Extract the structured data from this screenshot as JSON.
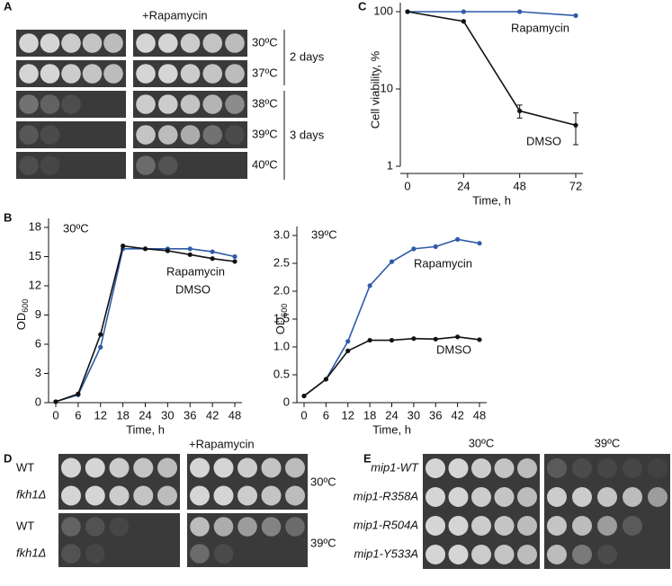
{
  "panel_labels": [
    "A",
    "B",
    "C",
    "D",
    "E"
  ],
  "spot_assays": [
    {
      "treatment": "+Rapamycin",
      "temperatures": [
        "30ºC",
        "37ºC",
        "38ºC",
        "39ºC",
        "40ºC"
      ],
      "groups": [
        "2 days",
        "3 days"
      ]
    },
    {
      "treatment": "+Rapamycin",
      "strains": [
        "WT",
        "fkh1Δ",
        "WT",
        "fkh1Δ"
      ],
      "temperatures": [
        "30ºC",
        "39ºC"
      ]
    },
    {
      "temperatures": [
        "30ºC",
        "39ºC"
      ],
      "strains": [
        "mip1-WT",
        "mip1-R358A",
        "mip1-R504A",
        "mip1-Y533A"
      ]
    }
  ],
  "chart_data": [
    {
      "type": "line",
      "log_y": true,
      "xlabel": "Time, h",
      "ylabel": "Cell viability, %",
      "x": [
        0,
        24,
        48,
        72
      ],
      "xlim": [
        0,
        72
      ],
      "xticks": [
        0,
        24,
        48,
        72
      ],
      "ylim": [
        1,
        100
      ],
      "yticks": [
        1,
        10,
        100
      ],
      "series": [
        {
          "name": "Rapamycin",
          "color": "#2f5ba8",
          "values": [
            100,
            100,
            100,
            89
          ]
        },
        {
          "name": "DMSO",
          "color": "#111111",
          "values": [
            100,
            75,
            5.2,
            3.4
          ],
          "errors": [
            0,
            0,
            1,
            1.5
          ]
        }
      ]
    },
    {
      "type": "line",
      "title": "30ºC",
      "xlabel": "Time, h",
      "ylabel": {
        "text": "OD",
        "subscript": "600"
      },
      "x": [
        0,
        6,
        12,
        18,
        24,
        30,
        36,
        42,
        48
      ],
      "xlim": [
        0,
        48
      ],
      "xticks": [
        0,
        6,
        12,
        18,
        24,
        30,
        36,
        42,
        48
      ],
      "ylim": [
        0,
        18
      ],
      "yticks": [
        0,
        3,
        6,
        9,
        12,
        15,
        18
      ],
      "series": [
        {
          "name": "Rapamycin",
          "color": "#2f5ba8",
          "values": [
            0.1,
            0.8,
            5.7,
            15.8,
            15.8,
            15.8,
            15.8,
            15.5,
            15.0
          ]
        },
        {
          "name": "DMSO",
          "color": "#111111",
          "values": [
            0.1,
            0.9,
            7.0,
            16.1,
            15.8,
            15.6,
            15.2,
            14.8,
            14.5
          ]
        }
      ]
    },
    {
      "type": "line",
      "title": "39ºC",
      "xlabel": "Time, h",
      "ylabel": {
        "text": "OD",
        "subscript": "600"
      },
      "x": [
        0,
        6,
        12,
        18,
        24,
        30,
        36,
        42,
        48
      ],
      "xlim": [
        0,
        48
      ],
      "xticks": [
        0,
        6,
        12,
        18,
        24,
        30,
        36,
        42,
        48
      ],
      "ylim": [
        0,
        3
      ],
      "yticks": [
        0,
        0.5,
        {
          "value": 1,
          "label": "1.0"
        },
        1.5,
        {
          "value": 2,
          "label": "2.0"
        },
        2.5,
        {
          "value": 3,
          "label": "3.0"
        }
      ],
      "series": [
        {
          "name": "Rapamycin",
          "color": "#2f5ba8",
          "values": [
            0.12,
            0.42,
            1.1,
            2.1,
            2.53,
            2.76,
            2.8,
            2.93,
            2.86
          ]
        },
        {
          "name": "DMSO",
          "color": "#111111",
          "values": [
            0.12,
            0.42,
            0.93,
            1.12,
            1.12,
            1.15,
            1.14,
            1.18,
            1.13
          ]
        }
      ]
    }
  ]
}
